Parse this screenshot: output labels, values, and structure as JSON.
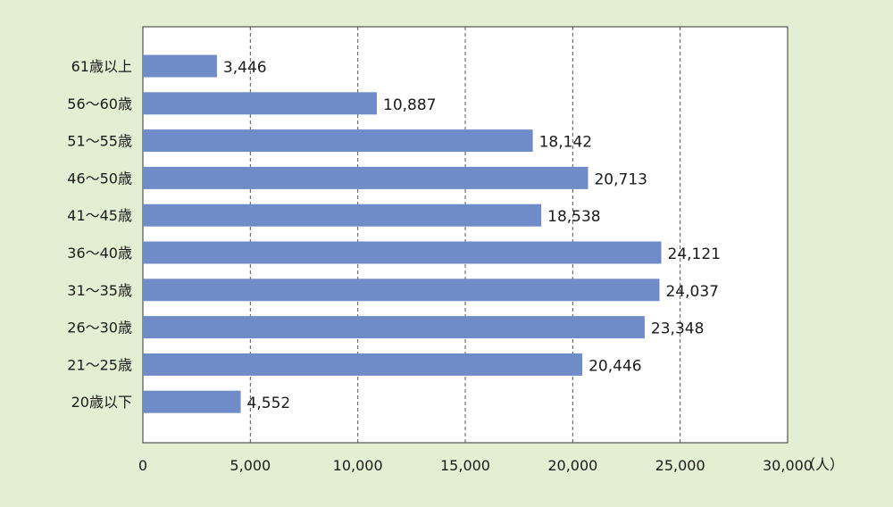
{
  "chart_data": {
    "type": "bar",
    "orientation": "horizontal",
    "categories": [
      "61歳以上",
      "56～60歳",
      "51～55歳",
      "46～50歳",
      "41～45歳",
      "36～40歳",
      "31～35歳",
      "26～30歳",
      "21～25歳",
      "20歳以下"
    ],
    "values": [
      3446,
      10887,
      18142,
      20713,
      18538,
      24121,
      24037,
      23348,
      20446,
      4552
    ],
    "value_labels": [
      "3,446",
      "10,887",
      "18,142",
      "20,713",
      "18,538",
      "24,121",
      "24,037",
      "23,348",
      "20,446",
      "4,552"
    ],
    "xlim": [
      0,
      30000
    ],
    "x_ticks": [
      0,
      5000,
      10000,
      15000,
      20000,
      25000,
      30000
    ],
    "x_tick_labels": [
      "0",
      "5,000",
      "10,000",
      "15,000",
      "20,000",
      "25,000",
      "30,000"
    ],
    "x_unit": "（人）",
    "grid": "vertical dashed",
    "legend": "none",
    "title": "",
    "xlabel": "",
    "ylabel": ""
  },
  "colors": {
    "background": "#e2efd2",
    "plot_background": "#ffffff",
    "bar": "#6f8cc8",
    "grid": "#555555",
    "axis": "#333333"
  }
}
